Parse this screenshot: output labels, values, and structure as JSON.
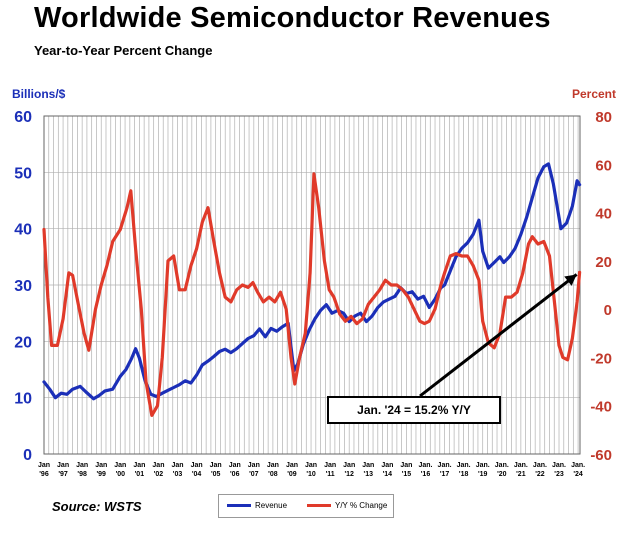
{
  "header": {
    "title": "Worldwide Semiconductor Revenues",
    "subtitle": "Year-to-Year Percent Change"
  },
  "axes": {
    "left_unit": "Billions/$",
    "right_unit": "Percent"
  },
  "source": "Source: WSTS",
  "legend": {
    "revenue": "Revenue",
    "yoy": "Y/Y % Change"
  },
  "annotation": {
    "text": "Jan. '24 = 15.2% Y/Y"
  },
  "colors": {
    "revenue": "#1b2fb8",
    "yoy": "#e03a2a",
    "grid": "#b0b0b0"
  },
  "chart_data": {
    "type": "line",
    "title": "Worldwide Semiconductor Revenues",
    "subtitle": "Year-to-Year Percent Change",
    "ylabel": "Billions/$",
    "y2label": "Percent",
    "ylim": [
      0,
      60
    ],
    "y2lim": [
      -60,
      80
    ],
    "yticks": [
      0,
      10,
      20,
      30,
      40,
      50,
      60
    ],
    "y2ticks": [
      -60,
      -40,
      -20,
      0,
      20,
      40,
      60,
      80
    ],
    "xlim": [
      1996,
      2024.1
    ],
    "grid": true,
    "legend_position": "bottom",
    "x_ticks": [
      {
        "x": 1996,
        "month": "Jan",
        "year": "'96"
      },
      {
        "x": 1997,
        "month": "Jan",
        "year": "'97"
      },
      {
        "x": 1998,
        "month": "Jan",
        "year": "'98"
      },
      {
        "x": 1999,
        "month": "Jan",
        "year": "'99"
      },
      {
        "x": 2000,
        "month": "Jan",
        "year": "'00"
      },
      {
        "x": 2001,
        "month": "Jan",
        "year": "'01"
      },
      {
        "x": 2002,
        "month": "Jan",
        "year": "'02"
      },
      {
        "x": 2003,
        "month": "Jan",
        "year": "'03"
      },
      {
        "x": 2004,
        "month": "Jan",
        "year": "'04"
      },
      {
        "x": 2005,
        "month": "Jan",
        "year": "'05"
      },
      {
        "x": 2006,
        "month": "Jan",
        "year": "'06"
      },
      {
        "x": 2007,
        "month": "Jan",
        "year": "'07"
      },
      {
        "x": 2008,
        "month": "Jan",
        "year": "'08"
      },
      {
        "x": 2009,
        "month": "Jan",
        "year": "'09"
      },
      {
        "x": 2010,
        "month": "Jan",
        "year": "'10"
      },
      {
        "x": 2011,
        "month": "Jan",
        "year": "'11"
      },
      {
        "x": 2012,
        "month": "Jan",
        "year": "'12"
      },
      {
        "x": 2013,
        "month": "Jan",
        "year": "'13"
      },
      {
        "x": 2014,
        "month": "Jan",
        "year": "'14"
      },
      {
        "x": 2015,
        "month": "Jan",
        "year": "'15"
      },
      {
        "x": 2016,
        "month": "Jan.",
        "year": "'16"
      },
      {
        "x": 2017,
        "month": "Jan.",
        "year": "'17"
      },
      {
        "x": 2018,
        "month": "Jan.",
        "year": "'18"
      },
      {
        "x": 2019,
        "month": "Jan.",
        "year": "'19"
      },
      {
        "x": 2020,
        "month": "Jan.",
        "year": "'20"
      },
      {
        "x": 2021,
        "month": "Jan.",
        "year": "'21"
      },
      {
        "x": 2022,
        "month": "Jan.",
        "year": "'22"
      },
      {
        "x": 2023,
        "month": "Jan.",
        "year": "'23"
      },
      {
        "x": 2024,
        "month": "Jan.",
        "year": "'24"
      }
    ],
    "series": [
      {
        "name": "Revenue",
        "axis": "left",
        "points": [
          [
            1996.0,
            12.8
          ],
          [
            1996.3,
            11.5
          ],
          [
            1996.6,
            10.0
          ],
          [
            1996.9,
            10.8
          ],
          [
            1997.2,
            10.6
          ],
          [
            1997.5,
            11.5
          ],
          [
            1997.9,
            12.0
          ],
          [
            1998.2,
            11.0
          ],
          [
            1998.6,
            9.8
          ],
          [
            1998.9,
            10.4
          ],
          [
            1999.2,
            11.2
          ],
          [
            1999.6,
            11.5
          ],
          [
            2000.0,
            13.8
          ],
          [
            2000.3,
            15.0
          ],
          [
            2000.6,
            17.0
          ],
          [
            2000.8,
            18.7
          ],
          [
            2001.0,
            17.0
          ],
          [
            2001.3,
            13.0
          ],
          [
            2001.6,
            10.6
          ],
          [
            2001.9,
            10.2
          ],
          [
            2002.2,
            10.8
          ],
          [
            2002.5,
            11.3
          ],
          [
            2002.8,
            11.8
          ],
          [
            2003.1,
            12.3
          ],
          [
            2003.4,
            13.0
          ],
          [
            2003.7,
            12.6
          ],
          [
            2004.0,
            14.0
          ],
          [
            2004.3,
            15.8
          ],
          [
            2004.6,
            16.5
          ],
          [
            2004.9,
            17.3
          ],
          [
            2005.2,
            18.2
          ],
          [
            2005.5,
            18.6
          ],
          [
            2005.8,
            18.0
          ],
          [
            2006.1,
            18.7
          ],
          [
            2006.4,
            19.6
          ],
          [
            2006.7,
            20.5
          ],
          [
            2007.0,
            21.0
          ],
          [
            2007.3,
            22.2
          ],
          [
            2007.6,
            20.8
          ],
          [
            2007.9,
            22.3
          ],
          [
            2008.2,
            21.8
          ],
          [
            2008.5,
            22.6
          ],
          [
            2008.8,
            23.2
          ],
          [
            2008.95,
            19.0
          ],
          [
            2009.1,
            14.8
          ],
          [
            2009.3,
            16.0
          ],
          [
            2009.6,
            19.5
          ],
          [
            2009.9,
            22.0
          ],
          [
            2010.2,
            24.0
          ],
          [
            2010.5,
            25.5
          ],
          [
            2010.8,
            26.5
          ],
          [
            2011.1,
            25.0
          ],
          [
            2011.4,
            25.5
          ],
          [
            2011.7,
            25.0
          ],
          [
            2012.0,
            23.5
          ],
          [
            2012.3,
            24.5
          ],
          [
            2012.6,
            25.0
          ],
          [
            2012.9,
            23.5
          ],
          [
            2013.2,
            24.5
          ],
          [
            2013.5,
            26.0
          ],
          [
            2013.8,
            27.0
          ],
          [
            2014.1,
            27.5
          ],
          [
            2014.4,
            28.0
          ],
          [
            2014.7,
            29.5
          ],
          [
            2015.0,
            28.5
          ],
          [
            2015.3,
            28.8
          ],
          [
            2015.6,
            27.5
          ],
          [
            2015.9,
            28.0
          ],
          [
            2016.2,
            26.0
          ],
          [
            2016.5,
            27.5
          ],
          [
            2016.8,
            29.5
          ],
          [
            2017.0,
            30.0
          ],
          [
            2017.3,
            32.5
          ],
          [
            2017.6,
            35.0
          ],
          [
            2017.9,
            36.5
          ],
          [
            2018.2,
            37.5
          ],
          [
            2018.5,
            39.0
          ],
          [
            2018.8,
            41.5
          ],
          [
            2019.0,
            36.0
          ],
          [
            2019.3,
            33.0
          ],
          [
            2019.6,
            34.0
          ],
          [
            2019.9,
            35.0
          ],
          [
            2020.1,
            34.0
          ],
          [
            2020.4,
            35.0
          ],
          [
            2020.7,
            36.5
          ],
          [
            2021.0,
            39.0
          ],
          [
            2021.3,
            42.0
          ],
          [
            2021.6,
            45.5
          ],
          [
            2021.9,
            49.0
          ],
          [
            2022.2,
            51.0
          ],
          [
            2022.45,
            51.5
          ],
          [
            2022.7,
            48.0
          ],
          [
            2022.9,
            44.0
          ],
          [
            2023.1,
            40.0
          ],
          [
            2023.4,
            41.0
          ],
          [
            2023.7,
            44.0
          ],
          [
            2023.95,
            48.5
          ],
          [
            2024.08,
            47.8
          ]
        ]
      },
      {
        "name": "Y/Y % Change",
        "axis": "right",
        "points": [
          [
            1996.0,
            33
          ],
          [
            1996.2,
            5
          ],
          [
            1996.4,
            -15
          ],
          [
            1996.7,
            -15
          ],
          [
            1997.0,
            -4
          ],
          [
            1997.3,
            15
          ],
          [
            1997.5,
            14
          ],
          [
            1997.8,
            2
          ],
          [
            1998.1,
            -10
          ],
          [
            1998.35,
            -17
          ],
          [
            1998.7,
            0
          ],
          [
            1999.0,
            10
          ],
          [
            1999.3,
            18
          ],
          [
            1999.6,
            28
          ],
          [
            2000.0,
            33
          ],
          [
            2000.35,
            42
          ],
          [
            2000.55,
            49
          ],
          [
            2000.8,
            25
          ],
          [
            2001.1,
            0
          ],
          [
            2001.35,
            -30
          ],
          [
            2001.65,
            -44
          ],
          [
            2001.95,
            -40
          ],
          [
            2002.2,
            -20
          ],
          [
            2002.5,
            20
          ],
          [
            2002.8,
            22
          ],
          [
            2003.1,
            8
          ],
          [
            2003.4,
            8
          ],
          [
            2003.7,
            18
          ],
          [
            2004.0,
            25
          ],
          [
            2004.3,
            36
          ],
          [
            2004.6,
            42
          ],
          [
            2004.9,
            28
          ],
          [
            2005.2,
            15
          ],
          [
            2005.5,
            5
          ],
          [
            2005.8,
            3
          ],
          [
            2006.1,
            8
          ],
          [
            2006.4,
            10
          ],
          [
            2006.7,
            9
          ],
          [
            2006.95,
            11
          ],
          [
            2007.2,
            7
          ],
          [
            2007.5,
            3
          ],
          [
            2007.8,
            5
          ],
          [
            2008.1,
            3
          ],
          [
            2008.4,
            7
          ],
          [
            2008.7,
            0
          ],
          [
            2008.95,
            -20
          ],
          [
            2009.15,
            -31
          ],
          [
            2009.4,
            -20
          ],
          [
            2009.7,
            -10
          ],
          [
            2009.95,
            15
          ],
          [
            2010.15,
            56
          ],
          [
            2010.4,
            42
          ],
          [
            2010.7,
            20
          ],
          [
            2010.95,
            8
          ],
          [
            2011.2,
            5
          ],
          [
            2011.5,
            -2
          ],
          [
            2011.8,
            -5
          ],
          [
            2012.1,
            -3
          ],
          [
            2012.4,
            -6
          ],
          [
            2012.7,
            -4
          ],
          [
            2013.0,
            2
          ],
          [
            2013.3,
            5
          ],
          [
            2013.6,
            8
          ],
          [
            2013.9,
            12
          ],
          [
            2014.2,
            10
          ],
          [
            2014.5,
            10
          ],
          [
            2014.8,
            8
          ],
          [
            2015.1,
            5
          ],
          [
            2015.4,
            0
          ],
          [
            2015.7,
            -5
          ],
          [
            2015.95,
            -6
          ],
          [
            2016.2,
            -5
          ],
          [
            2016.5,
            0
          ],
          [
            2016.8,
            10
          ],
          [
            2017.0,
            15
          ],
          [
            2017.3,
            22
          ],
          [
            2017.6,
            23
          ],
          [
            2017.9,
            22
          ],
          [
            2018.2,
            22
          ],
          [
            2018.5,
            18
          ],
          [
            2018.8,
            12
          ],
          [
            2019.0,
            -5
          ],
          [
            2019.3,
            -14
          ],
          [
            2019.6,
            -16
          ],
          [
            2019.9,
            -10
          ],
          [
            2020.2,
            5
          ],
          [
            2020.5,
            5
          ],
          [
            2020.8,
            7
          ],
          [
            2021.1,
            15
          ],
          [
            2021.4,
            27
          ],
          [
            2021.6,
            30
          ],
          [
            2021.9,
            27
          ],
          [
            2022.2,
            28
          ],
          [
            2022.5,
            22
          ],
          [
            2022.8,
            0
          ],
          [
            2023.0,
            -15
          ],
          [
            2023.2,
            -20
          ],
          [
            2023.45,
            -21
          ],
          [
            2023.7,
            -12
          ],
          [
            2023.95,
            3
          ],
          [
            2024.08,
            15.2
          ]
        ]
      }
    ],
    "annotations": [
      {
        "text": "Jan. '24 = 15.2% Y/Y",
        "x": 2024.08,
        "y": 15.2,
        "axis": "right"
      }
    ]
  }
}
